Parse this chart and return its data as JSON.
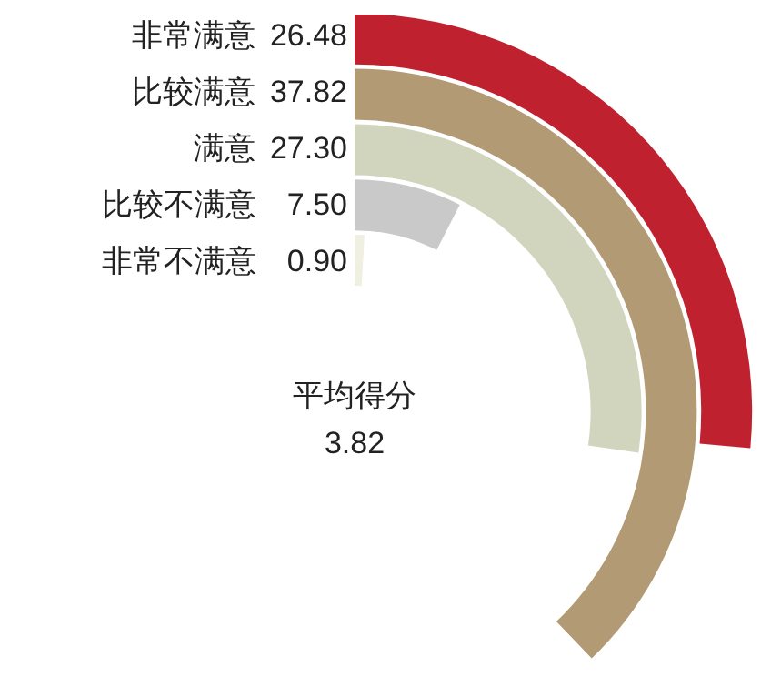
{
  "chart_data": {
    "type": "other",
    "categories": [
      "非常满意",
      "比较满意",
      "满意",
      "比较不满意",
      "非常不满意"
    ],
    "values": [
      26.48,
      37.82,
      27.3,
      7.5,
      0.9
    ],
    "value_labels": [
      "26.48",
      "37.82",
      "27.30",
      "7.50",
      "0.90"
    ],
    "colors": [
      "#c0212f",
      "#b29a74",
      "#d2d5be",
      "#c9c9c9",
      "#eff0e2"
    ],
    "annotations": [
      "平均得分",
      "3.82"
    ]
  }
}
